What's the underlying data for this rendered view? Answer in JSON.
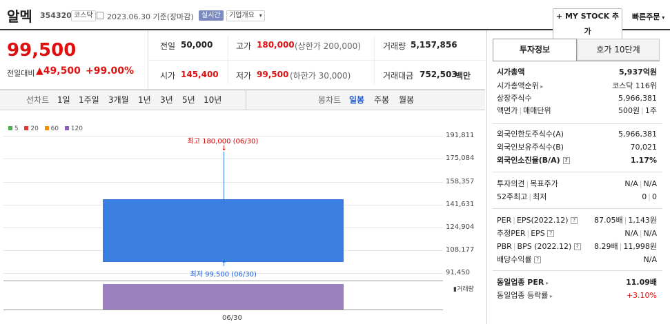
{
  "header": {
    "stock_name": "알멕",
    "stock_code": "354320",
    "market": "코스닥",
    "date": "2023.06.30 기준(장마감)",
    "realtime": "실시간",
    "company_overview": "기업개요",
    "mystock_button": "MY STOCK 추가",
    "quick_order": "빠른주문"
  },
  "price": {
    "current": "99,500",
    "change_label": "전일대비",
    "change_value": "49,500",
    "change_pct": "+99.00%"
  },
  "summary": {
    "prev_label": "전일",
    "prev": "50,000",
    "high_label": "고가",
    "high": "180,000",
    "upper_limit": "(상한가 200,000)",
    "volume_label": "거래량",
    "volume": "5,157,856",
    "open_label": "시가",
    "open": "145,400",
    "low_label": "저가",
    "low": "99,500",
    "lower_limit": "(하한가 30,000)",
    "amount_label": "거래대금",
    "amount": "752,503",
    "amount_unit": "백만"
  },
  "period_tabs": {
    "label": "선차트",
    "items": [
      "1일",
      "1주일",
      "3개월",
      "1년",
      "3년",
      "5년",
      "10년"
    ],
    "candle_label": "봉차트",
    "candle_items": [
      "일봉",
      "주봉",
      "월봉"
    ],
    "active_candle": "일봉"
  },
  "legend": [
    {
      "name": "5",
      "color": "#4caf50"
    },
    {
      "name": "20",
      "color": "#e53935"
    },
    {
      "name": "60",
      "color": "#fb8c00"
    },
    {
      "name": "120",
      "color": "#8e5bbf"
    }
  ],
  "chart_data": {
    "type": "candlestick",
    "y_ticks": [
      "191,811",
      "175,084",
      "158,357",
      "141,631",
      "124,904",
      "108,177",
      "91,450"
    ],
    "ylim": [
      91450,
      191811
    ],
    "x_ticks": [
      "06/30"
    ],
    "candles": [
      {
        "date": "06/30",
        "open": 145400,
        "high": 180000,
        "low": 99500,
        "close": 99500
      }
    ],
    "volume": [
      {
        "date": "06/30",
        "value": 5157856
      }
    ],
    "volume_label": "거래량",
    "high_annotation": "최고 180,000 (06/30)",
    "low_annotation": "최저 99,500 (06/30)",
    "candle_color": "#3a7ee0",
    "volume_color": "#9b80c0"
  },
  "right": {
    "tab_invest": "투자정보",
    "tab_hoga": "호가 10단계",
    "rows1": [
      {
        "k": "시가총액",
        "v": "5,937억원",
        "bold": true
      },
      {
        "k": "시가총액순위",
        "v": "코스닥 116위"
      },
      {
        "k": "상장주식수",
        "v": "5,966,381"
      },
      {
        "k": "액면가",
        "k2": "매매단위",
        "v": "500원",
        "v2": "1주"
      }
    ],
    "rows2": [
      {
        "k": "외국인한도주식수(A)",
        "v": "5,966,381"
      },
      {
        "k": "외국인보유주식수(B)",
        "v": "70,021"
      },
      {
        "k": "외국인소진율(B/A)",
        "v": "1.17%",
        "bold": true
      }
    ],
    "rows3": [
      {
        "k": "투자의견",
        "k2": "목표주가",
        "v": "N/A",
        "v2": "N/A"
      },
      {
        "k": "52주최고",
        "k2": "최저",
        "v": "0",
        "v2": "0"
      }
    ],
    "rows4": [
      {
        "k": "PER",
        "k2": "EPS(2022.12)",
        "v": "87.05배",
        "v2": "1,143원"
      },
      {
        "k": "추정PER",
        "k2": "EPS",
        "v": "N/A",
        "v2": "N/A"
      },
      {
        "k": "PBR",
        "k2": "BPS (2022.12)",
        "v": "8.29배",
        "v2": "11,998원"
      },
      {
        "k": "배당수익률",
        "v": "N/A"
      }
    ],
    "rows5": [
      {
        "k": "동일업종 PER",
        "v": "11.09배"
      },
      {
        "k": "동일업종 등락률",
        "v": "+3.10%"
      }
    ]
  }
}
